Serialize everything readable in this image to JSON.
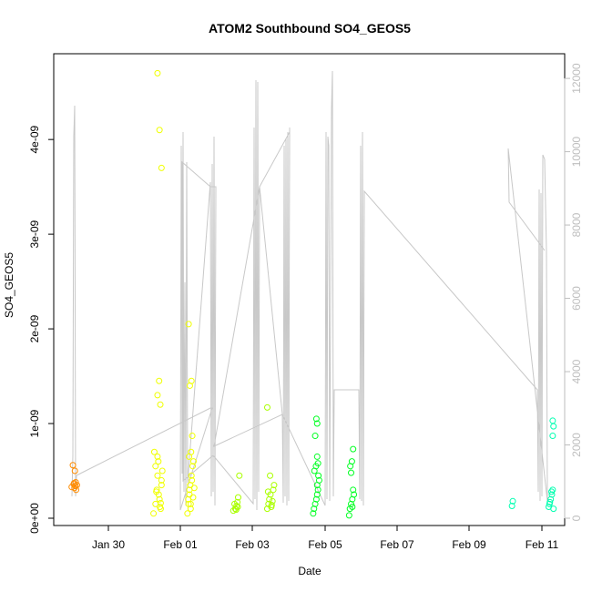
{
  "chart_data": {
    "type": "scatter",
    "title": "ATOM2 Southbound SO4_GEOS5",
    "xlabel": "Date",
    "ylabel": "SO4_GEOS5",
    "x_ticks": [
      "Jan 30",
      "Feb 01",
      "Feb 03",
      "Feb 05",
      "Feb 07",
      "Feb 09",
      "Feb 11"
    ],
    "y_ticks": [
      "0e+00",
      "1e-09",
      "2e-09",
      "3e-09",
      "4e-09"
    ],
    "y2_ticks": [
      "0",
      "2000",
      "4000",
      "6000",
      "8000",
      "10000",
      "12000"
    ],
    "ylim": [
      0,
      4.8e-09
    ],
    "y2lim": [
      0,
      12400
    ],
    "xlim_days": [
      -1.5,
      11.3
    ],
    "grid": false,
    "line_color": "#c8c8c8",
    "point_colors": [
      "#ff8c00",
      "#f0ff00",
      "#aaff00",
      "#00ff22",
      "#00ffb0"
    ],
    "series": [
      {
        "x": [
          -1.05,
          -1.0,
          -0.98,
          -0.95,
          -0.92,
          -0.97,
          -1.02,
          -0.94,
          -0.99,
          -0.96
        ],
        "values": [
          3.3e-10,
          3.6e-10,
          3.2e-10,
          3.8e-10,
          3.5e-10,
          5e-10,
          5.6e-10,
          3e-10,
          3.7e-10,
          3.4e-10
        ]
      },
      {
        "x": [
          1.0,
          1.05,
          1.08,
          1.1,
          1.12,
          1.15,
          1.18,
          1.2,
          1.05,
          1.1,
          1.13,
          1.16,
          1.2,
          1.22,
          1.02,
          1.07,
          1.1,
          1.14,
          1.17,
          1.2,
          1.1,
          1.15,
          1.18
        ],
        "values": [
          5e-11,
          1.5e-10,
          3e-10,
          4.5e-10,
          6e-10,
          2e-10,
          1e-10,
          3.5e-10,
          5.5e-10,
          6.5e-10,
          2.5e-10,
          1.2e-10,
          4e-10,
          5e-10,
          7e-10,
          2.8e-10,
          1.3e-09,
          1.45e-09,
          1.2e-09,
          3.7e-09,
          4.7e-09,
          4.1e-09,
          1.6e-10
        ]
      },
      {
        "x": [
          1.85,
          1.88,
          1.9,
          1.92,
          1.95,
          1.98,
          2.0,
          1.87,
          1.9,
          1.93,
          1.96,
          1.99,
          2.02,
          1.89,
          1.94,
          1.97,
          1.91,
          1.95,
          1.88,
          1.93
        ],
        "values": [
          5e-11,
          1.5e-10,
          2.5e-10,
          3.5e-10,
          4.5e-10,
          5.5e-10,
          6e-10,
          2e-10,
          3e-10,
          1e-10,
          4e-10,
          2.2e-10,
          3.2e-10,
          6.5e-10,
          7e-10,
          8.7e-10,
          1.4e-09,
          1.45e-09,
          2.05e-09,
          1.5e-10
        ]
      },
      {
        "x": [
          3.0,
          3.05,
          3.08,
          3.1,
          3.12,
          3.15,
          3.03,
          3.07,
          3.11,
          3.85,
          3.88,
          3.9,
          3.93,
          3.95,
          3.98,
          4.0,
          4.02,
          3.87,
          3.92,
          3.96,
          3.85
        ],
        "values": [
          8e-11,
          1e-10,
          1.3e-10,
          1.7e-10,
          2.2e-10,
          4.5e-10,
          1.5e-10,
          9e-11,
          1.2e-10,
          1e-10,
          1.5e-10,
          2e-10,
          2.5e-10,
          1.2e-10,
          1.8e-10,
          3e-10,
          3.5e-10,
          2.8e-10,
          4.5e-10,
          1.4e-10,
          1.17e-09
        ]
      },
      {
        "x": [
          5.0,
          5.02,
          5.05,
          5.08,
          5.1,
          5.12,
          5.15,
          5.03,
          5.07,
          5.1,
          5.13,
          5.05,
          5.1,
          5.08,
          5.1,
          5.12,
          5.9,
          5.92,
          5.95,
          5.98,
          6.0,
          6.02,
          5.93,
          5.97,
          6.0,
          5.95,
          5.98
        ],
        "values": [
          5e-11,
          1e-10,
          1.5e-10,
          2e-10,
          2.5e-10,
          3e-10,
          4e-10,
          5e-10,
          5.5e-10,
          6.5e-10,
          4.5e-10,
          8.7e-10,
          1e-09,
          1.05e-09,
          3.5e-10,
          5.8e-10,
          3e-11,
          1e-10,
          1.5e-10,
          2e-10,
          3e-10,
          2.5e-10,
          5.5e-10,
          6e-10,
          7.3e-10,
          4.8e-10,
          1.2e-10
        ]
      },
      {
        "x": [
          9.98,
          10.0,
          10.9,
          10.92,
          10.95,
          10.98,
          11.0,
          11.02,
          10.93,
          10.97,
          11.0,
          11.02,
          11.0
        ],
        "values": [
          1.3e-10,
          1.8e-10,
          1.2e-10,
          1.5e-10,
          2e-10,
          2.5e-10,
          3e-10,
          1e-10,
          1.7e-10,
          2.8e-10,
          8.7e-10,
          9.7e-10,
          1.03e-09
        ]
      }
    ]
  }
}
